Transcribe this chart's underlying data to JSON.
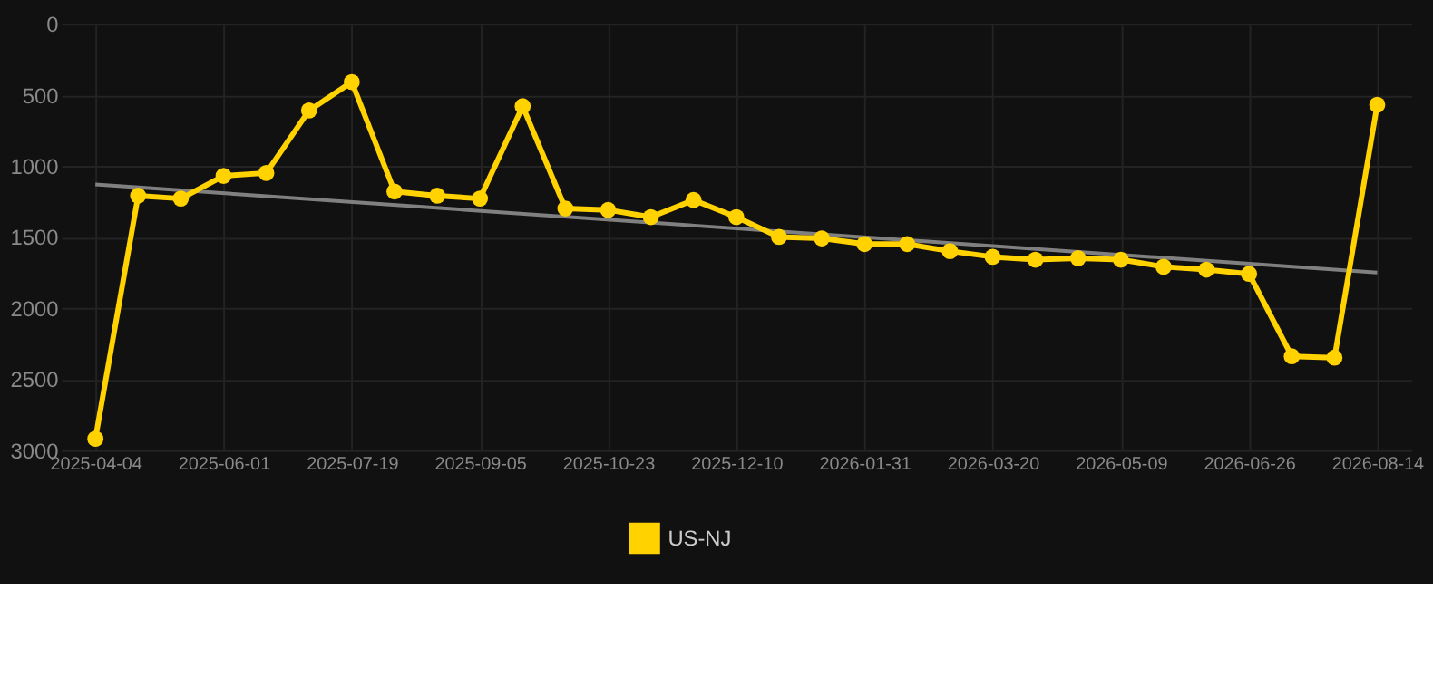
{
  "chart_data": {
    "type": "line",
    "categories": [
      "2025-04-04",
      null,
      null,
      "2025-06-01",
      null,
      null,
      "2025-07-19",
      null,
      null,
      "2025-09-05",
      null,
      null,
      "2025-10-23",
      null,
      null,
      "2025-12-10",
      null,
      null,
      "2026-01-31",
      null,
      null,
      "2026-03-20",
      null,
      null,
      "2026-05-09",
      null,
      null,
      "2026-06-26",
      null,
      null,
      "2026-08-14"
    ],
    "series": [
      {
        "name": "US-NJ",
        "color": "#ffd200",
        "marker": "circle",
        "values": [
          2920,
          1210,
          1230,
          1070,
          1050,
          610,
          410,
          1180,
          1210,
          1230,
          580,
          1300,
          1310,
          1360,
          1240,
          1360,
          1500,
          1510,
          1550,
          1550,
          1600,
          1640,
          1660,
          1650,
          1660,
          1710,
          1730,
          1760,
          2340,
          2350,
          570
        ]
      },
      {
        "type": "line",
        "color": "#808080",
        "marker": "none",
        "values": [
          1130,
          null,
          null,
          null,
          null,
          null,
          null,
          null,
          null,
          null,
          null,
          null,
          null,
          null,
          null,
          null,
          null,
          null,
          null,
          null,
          null,
          null,
          null,
          null,
          null,
          null,
          null,
          null,
          null,
          null,
          1750
        ]
      }
    ],
    "ylim": [
      3000,
      0
    ],
    "yticks": [
      0,
      500,
      1000,
      1500,
      2000,
      2500,
      3000
    ],
    "grid": true,
    "legend": "bottom"
  }
}
